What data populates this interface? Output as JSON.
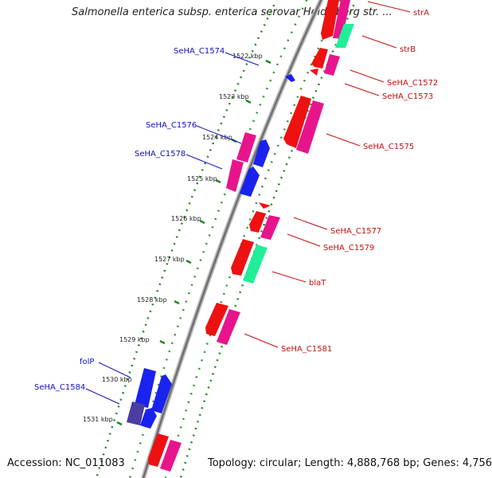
{
  "title": "Salmonella enterica subsp. enterica serovar Heidelberg str. ...",
  "footer": {
    "accession": "Accession: NC_011083",
    "topology": "Topology: circular; Length: 4,888,768 bp; Genes: 4,756"
  },
  "ticks": [
    "1522 kbp",
    "1523 kbp",
    "1524 kbp",
    "1525 kbp",
    "1526 kbp",
    "1527 kbp",
    "1528 kbp",
    "1529 kbp",
    "1530 kbp",
    "1531 kbp"
  ],
  "genes": {
    "forward": [
      "SeHA_C1574",
      "SeHA_C1576",
      "SeHA_C1578",
      "folP",
      "SeHA_C1584"
    ],
    "reverse": [
      "strA",
      "strB",
      "SeHA_C1572",
      "SeHA_C1573",
      "SeHA_C1575",
      "SeHA_C1577",
      "SeHA_C1579",
      "blaT",
      "SeHA_C1581"
    ]
  },
  "colors": {
    "forward_label": "#1010c0",
    "reverse_label": "#c01010",
    "cds_red": "#ee1111",
    "cds_pink": "#e8148c",
    "cds_green": "#22ee99",
    "cds_blue": "#1a22ee",
    "backbone": "#888888",
    "dots": "#228822"
  }
}
